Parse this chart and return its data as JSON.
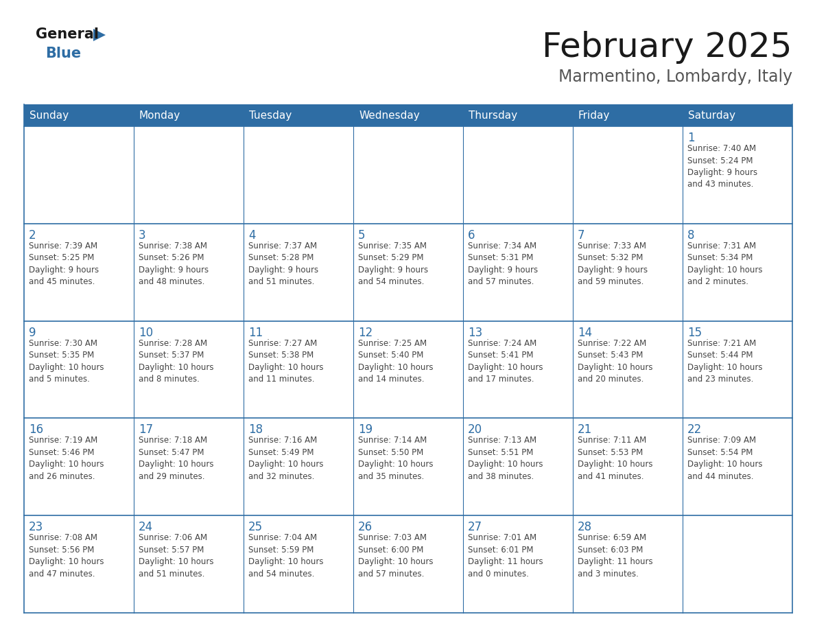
{
  "title": "February 2025",
  "subtitle": "Marmentino, Lombardy, Italy",
  "header_bg": "#2E6DA4",
  "header_text": "#FFFFFF",
  "cell_bg": "#FFFFFF",
  "border_color": "#2E6DA4",
  "day_number_color": "#2E6DA4",
  "text_color": "#444444",
  "day_headers": [
    "Sunday",
    "Monday",
    "Tuesday",
    "Wednesday",
    "Thursday",
    "Friday",
    "Saturday"
  ],
  "weeks": [
    [
      {
        "day": "",
        "info": ""
      },
      {
        "day": "",
        "info": ""
      },
      {
        "day": "",
        "info": ""
      },
      {
        "day": "",
        "info": ""
      },
      {
        "day": "",
        "info": ""
      },
      {
        "day": "",
        "info": ""
      },
      {
        "day": "1",
        "info": "Sunrise: 7:40 AM\nSunset: 5:24 PM\nDaylight: 9 hours\nand 43 minutes."
      }
    ],
    [
      {
        "day": "2",
        "info": "Sunrise: 7:39 AM\nSunset: 5:25 PM\nDaylight: 9 hours\nand 45 minutes."
      },
      {
        "day": "3",
        "info": "Sunrise: 7:38 AM\nSunset: 5:26 PM\nDaylight: 9 hours\nand 48 minutes."
      },
      {
        "day": "4",
        "info": "Sunrise: 7:37 AM\nSunset: 5:28 PM\nDaylight: 9 hours\nand 51 minutes."
      },
      {
        "day": "5",
        "info": "Sunrise: 7:35 AM\nSunset: 5:29 PM\nDaylight: 9 hours\nand 54 minutes."
      },
      {
        "day": "6",
        "info": "Sunrise: 7:34 AM\nSunset: 5:31 PM\nDaylight: 9 hours\nand 57 minutes."
      },
      {
        "day": "7",
        "info": "Sunrise: 7:33 AM\nSunset: 5:32 PM\nDaylight: 9 hours\nand 59 minutes."
      },
      {
        "day": "8",
        "info": "Sunrise: 7:31 AM\nSunset: 5:34 PM\nDaylight: 10 hours\nand 2 minutes."
      }
    ],
    [
      {
        "day": "9",
        "info": "Sunrise: 7:30 AM\nSunset: 5:35 PM\nDaylight: 10 hours\nand 5 minutes."
      },
      {
        "day": "10",
        "info": "Sunrise: 7:28 AM\nSunset: 5:37 PM\nDaylight: 10 hours\nand 8 minutes."
      },
      {
        "day": "11",
        "info": "Sunrise: 7:27 AM\nSunset: 5:38 PM\nDaylight: 10 hours\nand 11 minutes."
      },
      {
        "day": "12",
        "info": "Sunrise: 7:25 AM\nSunset: 5:40 PM\nDaylight: 10 hours\nand 14 minutes."
      },
      {
        "day": "13",
        "info": "Sunrise: 7:24 AM\nSunset: 5:41 PM\nDaylight: 10 hours\nand 17 minutes."
      },
      {
        "day": "14",
        "info": "Sunrise: 7:22 AM\nSunset: 5:43 PM\nDaylight: 10 hours\nand 20 minutes."
      },
      {
        "day": "15",
        "info": "Sunrise: 7:21 AM\nSunset: 5:44 PM\nDaylight: 10 hours\nand 23 minutes."
      }
    ],
    [
      {
        "day": "16",
        "info": "Sunrise: 7:19 AM\nSunset: 5:46 PM\nDaylight: 10 hours\nand 26 minutes."
      },
      {
        "day": "17",
        "info": "Sunrise: 7:18 AM\nSunset: 5:47 PM\nDaylight: 10 hours\nand 29 minutes."
      },
      {
        "day": "18",
        "info": "Sunrise: 7:16 AM\nSunset: 5:49 PM\nDaylight: 10 hours\nand 32 minutes."
      },
      {
        "day": "19",
        "info": "Sunrise: 7:14 AM\nSunset: 5:50 PM\nDaylight: 10 hours\nand 35 minutes."
      },
      {
        "day": "20",
        "info": "Sunrise: 7:13 AM\nSunset: 5:51 PM\nDaylight: 10 hours\nand 38 minutes."
      },
      {
        "day": "21",
        "info": "Sunrise: 7:11 AM\nSunset: 5:53 PM\nDaylight: 10 hours\nand 41 minutes."
      },
      {
        "day": "22",
        "info": "Sunrise: 7:09 AM\nSunset: 5:54 PM\nDaylight: 10 hours\nand 44 minutes."
      }
    ],
    [
      {
        "day": "23",
        "info": "Sunrise: 7:08 AM\nSunset: 5:56 PM\nDaylight: 10 hours\nand 47 minutes."
      },
      {
        "day": "24",
        "info": "Sunrise: 7:06 AM\nSunset: 5:57 PM\nDaylight: 10 hours\nand 51 minutes."
      },
      {
        "day": "25",
        "info": "Sunrise: 7:04 AM\nSunset: 5:59 PM\nDaylight: 10 hours\nand 54 minutes."
      },
      {
        "day": "26",
        "info": "Sunrise: 7:03 AM\nSunset: 6:00 PM\nDaylight: 10 hours\nand 57 minutes."
      },
      {
        "day": "27",
        "info": "Sunrise: 7:01 AM\nSunset: 6:01 PM\nDaylight: 11 hours\nand 0 minutes."
      },
      {
        "day": "28",
        "info": "Sunrise: 6:59 AM\nSunset: 6:03 PM\nDaylight: 11 hours\nand 3 minutes."
      },
      {
        "day": "",
        "info": ""
      }
    ]
  ],
  "logo_general_color": "#1a1a1a",
  "logo_blue_color": "#2E6DA4",
  "title_fontsize": 36,
  "subtitle_fontsize": 17,
  "header_fontsize": 11,
  "day_num_fontsize": 12,
  "info_fontsize": 8.5
}
